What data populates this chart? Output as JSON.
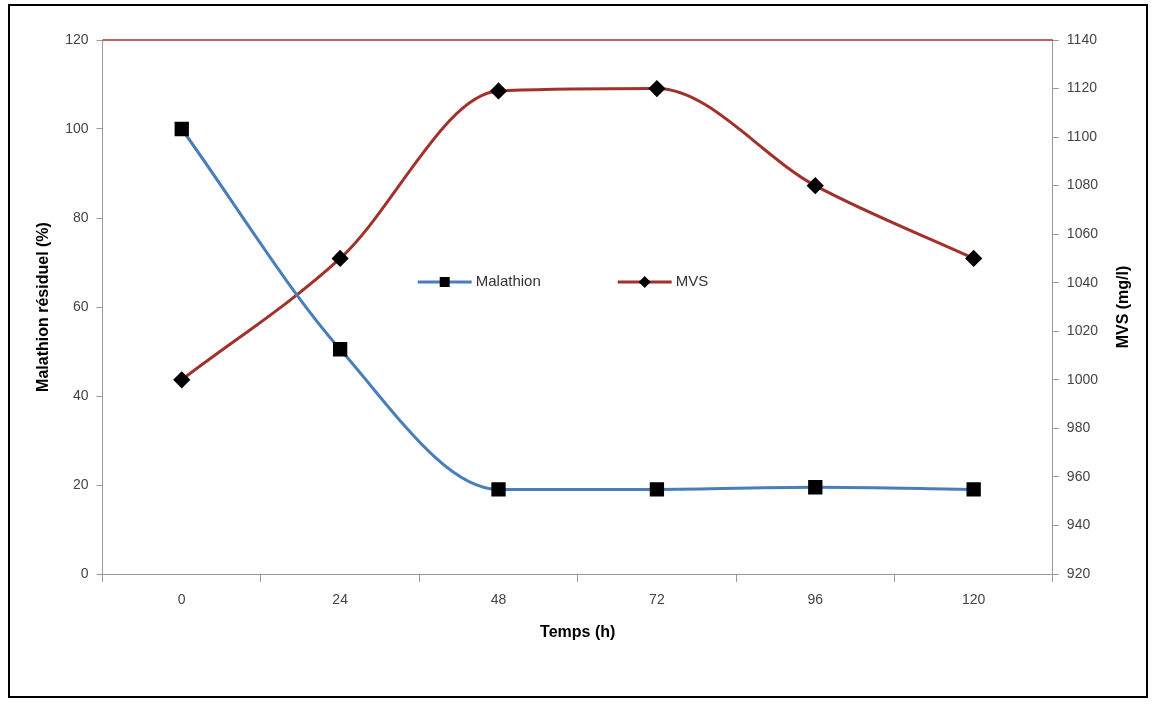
{
  "chart_data": {
    "type": "line",
    "xlabel": "Temps (h)",
    "ylabel": "Malathion résiduel (%)",
    "y2label": "MVS (mg/l)",
    "categories": [
      "0",
      "24",
      "48",
      "72",
      "96",
      "120"
    ],
    "series": [
      {
        "name": "Malathion",
        "color": "#4a7ebb",
        "marker": "square",
        "values": [
          100,
          50.5,
          19,
          19,
          19.5,
          19
        ]
      },
      {
        "name": "MVS",
        "color": "#a0312b",
        "marker": "diamond",
        "axis": "y2",
        "values": [
          1000,
          1050,
          1119,
          1120,
          1080,
          1050
        ]
      }
    ],
    "ylim": [
      0,
      120
    ],
    "yticks": [
      0,
      20,
      40,
      60,
      80,
      100,
      120
    ],
    "y2lim": [
      920,
      1140
    ],
    "y2ticks": [
      920,
      940,
      960,
      980,
      1000,
      1020,
      1040,
      1060,
      1080,
      1100,
      1120,
      1140
    ],
    "ref_lines": [
      {
        "axis": "y",
        "value": 120,
        "color": "#a0312b"
      }
    ],
    "grid": false,
    "legend": "center"
  }
}
